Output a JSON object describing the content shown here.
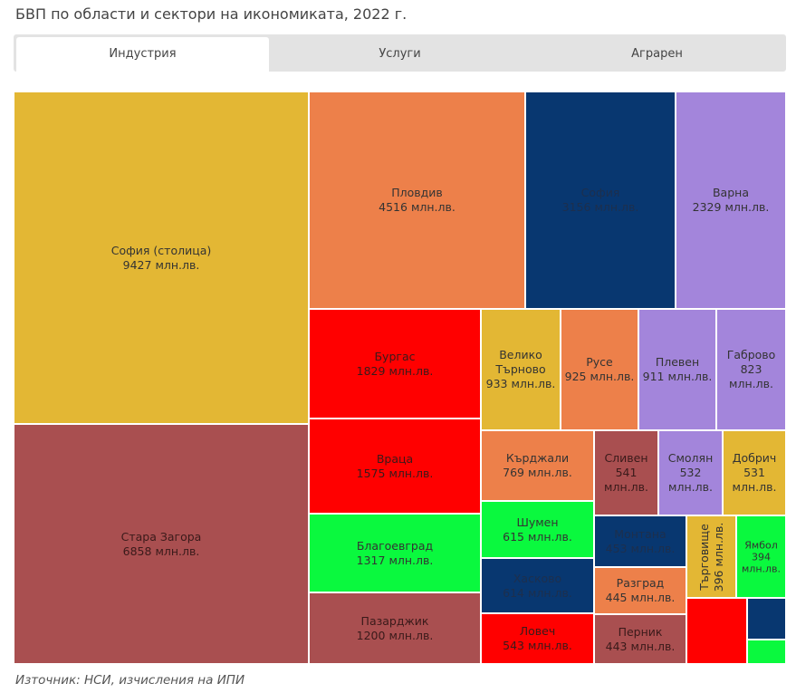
{
  "title": "БВП по области и сектори на икономиката, 2022 г.",
  "tabs": [
    {
      "label": "Индустрия",
      "active": true
    },
    {
      "label": "Услуги",
      "active": false
    },
    {
      "label": "Аграрен",
      "active": false
    }
  ],
  "source": "Източник: НСИ, изчисления на ИПИ",
  "unit": "млн.лв.",
  "colors": {
    "yellow": "#e3b734",
    "rose": "#a94f50",
    "orange": "#ed804a",
    "navy": "#083770",
    "purple": "#a385db",
    "red": "#ff0000",
    "green": "#0af93e"
  },
  "chart_data": {
    "type": "treemap",
    "title": "БВП по области и сектори на икономиката, 2022 г.",
    "unit": "млн.лв.",
    "nodes": [
      {
        "name": "София (столица)",
        "value": 9427,
        "label": "9427 млн.лв.",
        "color": "#e3b734"
      },
      {
        "name": "Стара Загора",
        "value": 6858,
        "label": "6858 млн.лв.",
        "color": "#a94f50"
      },
      {
        "name": "Пловдив",
        "value": 4516,
        "label": "4516 млн.лв.",
        "color": "#ed804a"
      },
      {
        "name": "София",
        "value": 3156,
        "label": "3156 млн.лв.",
        "color": "#083770"
      },
      {
        "name": "Варна",
        "value": 2329,
        "label": "2329 млн.лв.",
        "color": "#a385db"
      },
      {
        "name": "Бургас",
        "value": 1829,
        "label": "1829 млн.лв.",
        "color": "#ff0000"
      },
      {
        "name": "Велико Търново",
        "value": 933,
        "label": "933 млн.лв.",
        "color": "#e3b734"
      },
      {
        "name": "Русе",
        "value": 925,
        "label": "925 млн.лв.",
        "color": "#ed804a"
      },
      {
        "name": "Плевен",
        "value": 911,
        "label": "911 млн.лв.",
        "color": "#a385db"
      },
      {
        "name": "Габрово",
        "value": 823,
        "label": "823 млн.лв.",
        "color": "#a385db"
      },
      {
        "name": "Враца",
        "value": 1575,
        "label": "1575 млн.лв.",
        "color": "#ff0000"
      },
      {
        "name": "Кърджали",
        "value": 769,
        "label": "769 млн.лв.",
        "color": "#ed804a"
      },
      {
        "name": "Сливен",
        "value": 541,
        "label": "541 млн.лв.",
        "color": "#a94f50"
      },
      {
        "name": "Смолян",
        "value": 532,
        "label": "532 млн.лв.",
        "color": "#a385db"
      },
      {
        "name": "Добрич",
        "value": 531,
        "label": "531 млн.лв.",
        "color": "#e3b734"
      },
      {
        "name": "Благоевград",
        "value": 1317,
        "label": "1317 млн.лв.",
        "color": "#0af93e"
      },
      {
        "name": "Шумен",
        "value": 615,
        "label": "615 млн.лв.",
        "color": "#0af93e"
      },
      {
        "name": "Монтана",
        "value": 453,
        "label": "453 млн.лв.",
        "color": "#083770"
      },
      {
        "name": "Търговище",
        "value": 396,
        "label": "396 млн.лв.",
        "color": "#e3b734"
      },
      {
        "name": "Ямбол",
        "value": 394,
        "label": "394 млн.лв.",
        "color": "#0af93e"
      },
      {
        "name": "Хасково",
        "value": 614,
        "label": "614 млн.лв.",
        "color": "#083770"
      },
      {
        "name": "Разград",
        "value": 445,
        "label": "445 млн.лв.",
        "color": "#ed804a"
      },
      {
        "name": "Пазарджик",
        "value": 1200,
        "label": "1200 млн.лв.",
        "color": "#a94f50"
      },
      {
        "name": "Ловеч",
        "value": 543,
        "label": "543 млн.лв.",
        "color": "#ff0000"
      },
      {
        "name": "Перник",
        "value": 443,
        "label": "443 млн.лв.",
        "color": "#a94f50"
      },
      {
        "name": "",
        "value": null,
        "label": "",
        "color": "#ff0000"
      },
      {
        "name": "",
        "value": null,
        "label": "",
        "color": "#083770"
      },
      {
        "name": "",
        "value": null,
        "label": "",
        "color": "#0af93e"
      }
    ]
  }
}
